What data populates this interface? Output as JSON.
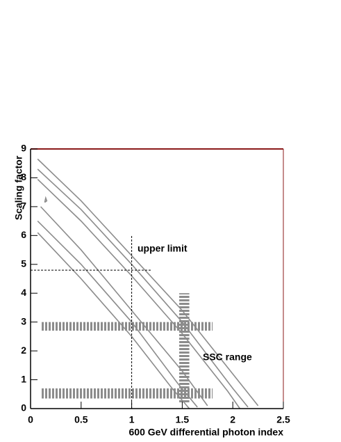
{
  "chart_data": {
    "type": "contour",
    "xlabel": "600 GeV differential photon index",
    "ylabel": "Scaling factor",
    "xlim": [
      0,
      2.5
    ],
    "ylim": [
      0,
      9
    ],
    "xticks": [
      0,
      0.5,
      1,
      1.5,
      2,
      2.5
    ],
    "yticks": [
      0,
      1,
      2,
      3,
      4,
      5,
      6,
      7,
      8,
      9
    ],
    "color": "#8c8c8c",
    "series": [
      {
        "x": [
          0.07,
          0.5,
          1.0,
          1.5,
          2.0,
          2.25
        ],
        "y": [
          8.65,
          7.2,
          5.3,
          3.4,
          1.2,
          0.1
        ]
      },
      {
        "x": [
          0.07,
          0.5,
          1.0,
          1.5,
          2.0,
          2.15
        ],
        "y": [
          8.3,
          6.9,
          5.0,
          3.0,
          0.7,
          0.05
        ]
      },
      {
        "x": [
          0.07,
          0.5,
          1.0,
          1.5,
          1.95,
          2.07
        ],
        "y": [
          7.95,
          6.5,
          4.6,
          2.6,
          0.6,
          0
        ]
      },
      {
        "x": [
          0.1,
          0.5,
          1.0,
          1.5,
          1.75
        ],
        "y": [
          7.0,
          5.5,
          3.4,
          1.3,
          0.1
        ]
      },
      {
        "x": [
          0.07,
          0.5,
          1.0,
          1.45,
          1.65
        ],
        "y": [
          6.5,
          5.0,
          3.0,
          0.9,
          0.05
        ]
      },
      {
        "x": [
          0.07,
          0.5,
          1.0,
          1.4,
          1.57
        ],
        "y": [
          6.1,
          4.5,
          2.5,
          0.7,
          0
        ]
      },
      {
        "x": [
          0.14,
          0.16,
          0.15,
          0.14
        ],
        "y": [
          7.15,
          7.2,
          7.3,
          7.15
        ]
      }
    ],
    "dashed_lines": [
      {
        "x": [
          1,
          1
        ],
        "y": [
          0,
          6
        ]
      },
      {
        "x": [
          0,
          1.2
        ],
        "y": [
          4.8,
          4.8
        ]
      }
    ],
    "bands": [
      {
        "x": [
          0.1,
          1.8
        ],
        "y": [
          2.7,
          3.0
        ]
      },
      {
        "x": [
          0.1,
          1.8
        ],
        "y": [
          0.35,
          0.7
        ]
      },
      {
        "x": [
          1.47,
          1.57
        ],
        "y": [
          0.2,
          4.0
        ]
      }
    ],
    "annotations": [
      "upper limit",
      "SSC range"
    ]
  }
}
